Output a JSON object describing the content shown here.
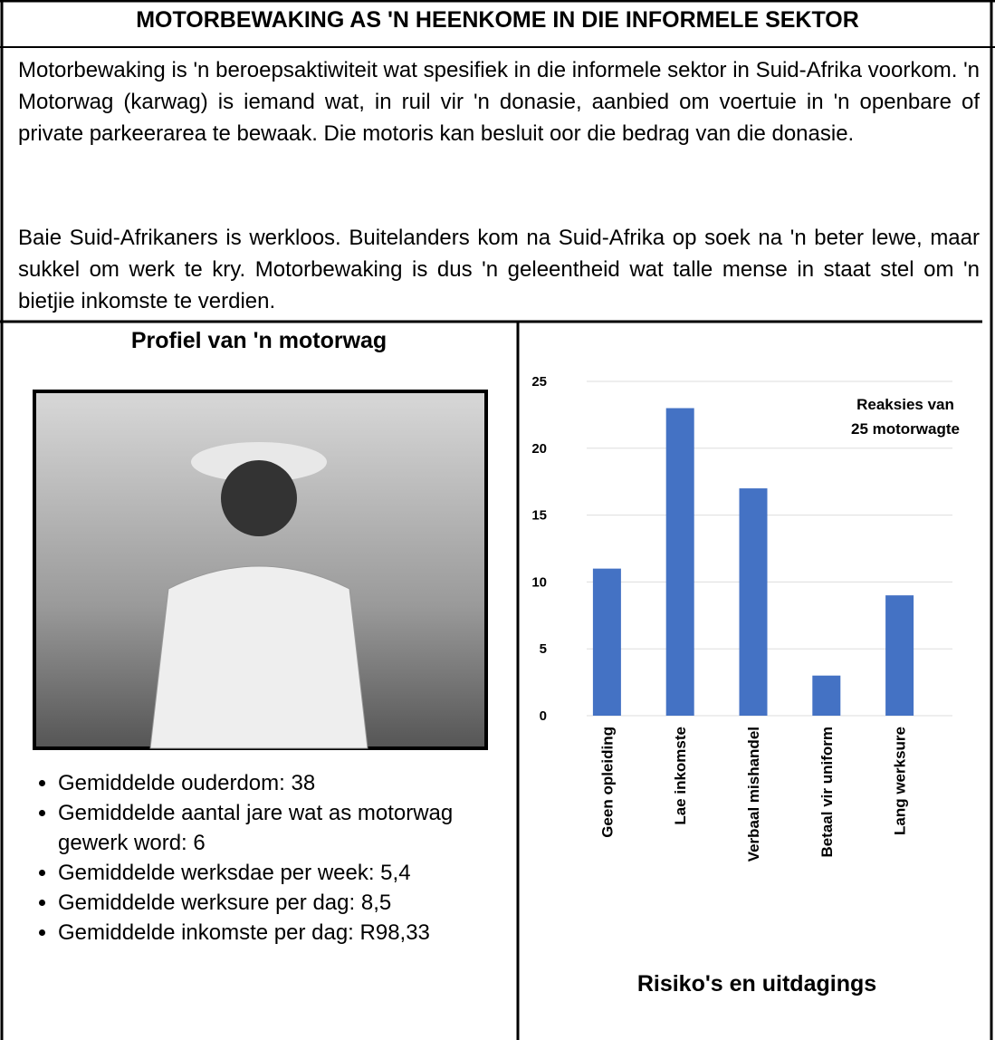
{
  "header": {
    "title": "MOTORBEWAKING AS 'N HEENKOME IN DIE INFORMELE SEKTOR"
  },
  "paragraphs": [
    "Motorbewaking is 'n beroepsaktiwiteit wat spesifiek in die informele sektor in Suid-Afrika voorkom. 'n Motorwag (karwag) is iemand wat, in ruil vir 'n donasie, aanbied om voertuie in 'n openbare of private parkeerarea te bewaak. Die motoris kan besluit oor die bedrag van die donasie.",
    "Baie Suid-Afrikaners is werkloos. Buitelanders kom na Suid-Afrika op soek na 'n beter lewe, maar sukkel om werk te kry. Motorbewaking is dus 'n geleentheid wat talle mense in staat stel om 'n bietjie inkomste te verdien."
  ],
  "profile": {
    "title": "Profiel van 'n motorwag",
    "bullets": [
      "Gemiddelde ouderdom: 38",
      "Gemiddelde aantal jare wat as motorwag gewerk word: 6",
      "Gemiddelde werksdae per week: 5,4",
      "Gemiddelde werksure per dag: 8,5",
      "Gemiddelde inkomste per dag: R98,33"
    ]
  },
  "chart_data": {
    "type": "bar",
    "title": "Risiko's en uitdagings",
    "annotation": [
      "Reaksies  van",
      "25 motorwagte"
    ],
    "categories": [
      "Geen opleiding",
      "Lae inkomste",
      "Verbaal mishandel",
      "Betaal vir uniform",
      "Lang werksure"
    ],
    "values": [
      11,
      23,
      17,
      3,
      9
    ],
    "color": "#4472c4",
    "ylim": [
      0,
      25
    ],
    "yticks": [
      0,
      5,
      10,
      15,
      20,
      25
    ],
    "grid": true
  }
}
